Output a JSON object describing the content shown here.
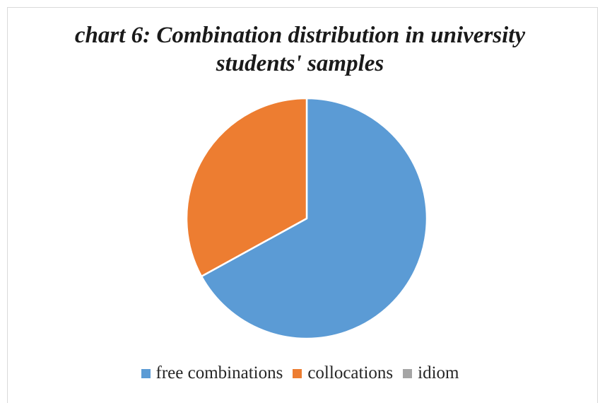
{
  "chart_data": {
    "type": "pie",
    "title_lines": [
      "chart 6: Combination distribution in university",
      "students' samples"
    ],
    "categories": [
      "free combinations",
      "collocations",
      "idiom"
    ],
    "values": [
      67,
      33,
      0
    ],
    "colors": [
      "#5B9BD5",
      "#ED7D31",
      "#A5A5A5"
    ],
    "legend_position": "bottom"
  }
}
